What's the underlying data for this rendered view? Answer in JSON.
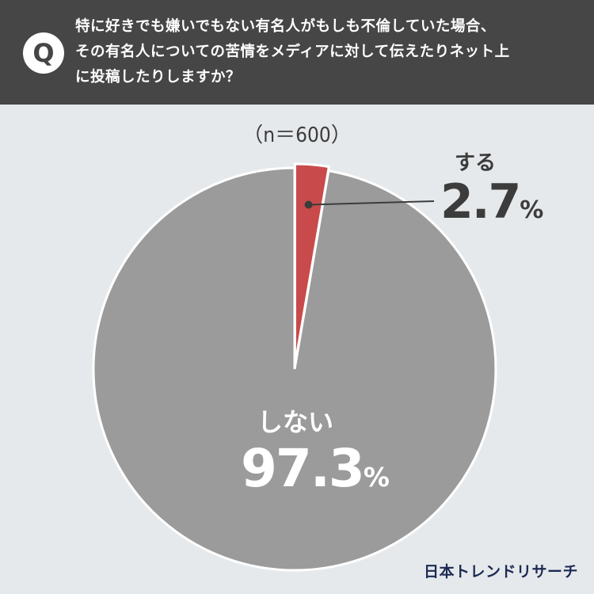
{
  "header": {
    "badge": "Q",
    "question_lines": [
      "特に好きでも嫌いでもない有名人がもしも不倫していた場合、",
      "その有名人についての苦情をメディアに対して伝えたりネット上",
      "に投稿したりしますか？"
    ]
  },
  "sample_label": "（n＝600）",
  "chart_data": {
    "type": "pie",
    "slices": [
      {
        "label": "する",
        "value": 2.7,
        "value_text": "2.7",
        "pct_sign": "%",
        "color": "#c94a4a"
      },
      {
        "label": "しない",
        "value": 97.3,
        "value_text": "97.3",
        "pct_sign": "%",
        "color": "#9b9b9b"
      }
    ],
    "start_angle_deg": 0,
    "direction": "clockwise",
    "exploded_slice": "する"
  },
  "colors": {
    "header_bg": "#464646",
    "page_bg": "#e6e9ec",
    "leader": "#3c3c3c"
  },
  "footer": {
    "logo": "日本トレンドリサーチ"
  }
}
